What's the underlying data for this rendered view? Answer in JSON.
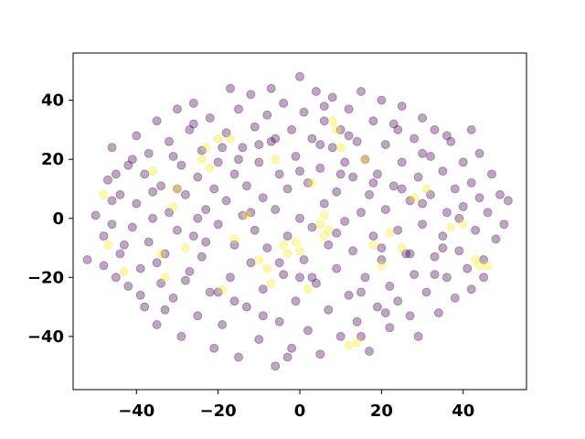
{
  "chart_data": {
    "type": "scatter",
    "title": "",
    "xlabel": "",
    "ylabel": "",
    "xlim": [
      -55.5,
      55.5
    ],
    "ylim": [
      -58,
      56
    ],
    "xticks": [
      -40,
      -20,
      0,
      20,
      40
    ],
    "yticks": [
      -40,
      -20,
      0,
      20,
      40
    ],
    "xtick_labels": [
      "−40",
      "−20",
      "0",
      "20",
      "40"
    ],
    "ytick_labels": [
      "−40",
      "−20",
      "0",
      "20",
      "40"
    ],
    "grid": false,
    "legend": "none",
    "marker_alpha": 0.35,
    "series": [
      {
        "color": "#440154",
        "values": [
          [
            -52,
            -14
          ],
          [
            -50,
            1
          ],
          [
            -48,
            -6
          ],
          [
            -47,
            13
          ],
          [
            -46,
            24
          ],
          [
            -46,
            -2
          ],
          [
            -45,
            -20
          ],
          [
            -44,
            8
          ],
          [
            -44,
            -12
          ],
          [
            -42,
            18
          ],
          [
            -42,
            -23
          ],
          [
            -41,
            -3
          ],
          [
            -40,
            28
          ],
          [
            -40,
            5
          ],
          [
            -39,
            -17
          ],
          [
            -38,
            15
          ],
          [
            -38,
            -30
          ],
          [
            -37,
            22
          ],
          [
            -37,
            -8
          ],
          [
            -36,
            0
          ],
          [
            -35,
            33
          ],
          [
            -35,
            -36
          ],
          [
            -34,
            -22
          ],
          [
            -34,
            11
          ],
          [
            -33,
            -12
          ],
          [
            -32,
            26
          ],
          [
            -32,
            2
          ],
          [
            -31,
            -27
          ],
          [
            -30,
            37
          ],
          [
            -30,
            -4
          ],
          [
            -29,
            18
          ],
          [
            -29,
            -40
          ],
          [
            -28,
            8
          ],
          [
            -27,
            -18
          ],
          [
            -27,
            30
          ],
          [
            -26,
            -6
          ],
          [
            -26,
            39
          ],
          [
            -25,
            14
          ],
          [
            -25,
            -33
          ],
          [
            -24,
            23
          ],
          [
            -24,
            -13
          ],
          [
            -23,
            3
          ],
          [
            -22,
            34
          ],
          [
            -22,
            -25
          ],
          [
            -21,
            10
          ],
          [
            -21,
            -44
          ],
          [
            -20,
            19
          ],
          [
            -20,
            -2
          ],
          [
            -19,
            -36
          ],
          [
            -18,
            29
          ],
          [
            -18,
            6
          ],
          [
            -17,
            -20
          ],
          [
            -17,
            44
          ],
          [
            -16,
            15
          ],
          [
            -16,
            -9
          ],
          [
            -15,
            37
          ],
          [
            -15,
            -47
          ],
          [
            -14,
            1
          ],
          [
            -14,
            24
          ],
          [
            -13,
            -30
          ],
          [
            -13,
            11
          ],
          [
            -12,
            -15
          ],
          [
            -12,
            42
          ],
          [
            -11,
            31
          ],
          [
            -11,
            -4
          ],
          [
            -10,
            19
          ],
          [
            -10,
            -41
          ],
          [
            -9,
            7
          ],
          [
            -9,
            -24
          ],
          [
            -8,
            35
          ],
          [
            -8,
            -10
          ],
          [
            -7,
            26
          ],
          [
            -7,
            44
          ],
          [
            -6,
            -50
          ],
          [
            -6,
            3
          ],
          [
            -5,
            -35
          ],
          [
            -5,
            15
          ],
          [
            -4,
            39
          ],
          [
            -4,
            -19
          ],
          [
            -3,
            10
          ],
          [
            -3,
            -6
          ],
          [
            -2,
            30
          ],
          [
            -2,
            -44
          ],
          [
            -1,
            21
          ],
          [
            -1,
            -28
          ],
          [
            0,
            0
          ],
          [
            0,
            48
          ],
          [
            1,
            -14
          ],
          [
            1,
            36
          ],
          [
            2,
            12
          ],
          [
            2,
            -38
          ],
          [
            3,
            27
          ],
          [
            3,
            -3
          ],
          [
            4,
            43
          ],
          [
            4,
            -22
          ],
          [
            5,
            17
          ],
          [
            5,
            -46
          ],
          [
            6,
            5
          ],
          [
            6,
            33
          ],
          [
            7,
            -31
          ],
          [
            7,
            -9
          ],
          [
            8,
            24
          ],
          [
            8,
            41
          ],
          [
            9,
            -17
          ],
          [
            9,
            9
          ],
          [
            10,
            -40
          ],
          [
            10,
            30
          ],
          [
            11,
            -1
          ],
          [
            11,
            19
          ],
          [
            12,
            -26
          ],
          [
            12,
            37
          ],
          [
            13,
            14
          ],
          [
            13,
            -11
          ],
          [
            14,
            -35
          ],
          [
            14,
            26
          ],
          [
            15,
            2
          ],
          [
            15,
            43
          ],
          [
            16,
            -20
          ],
          [
            16,
            20
          ],
          [
            17,
            -45
          ],
          [
            17,
            8
          ],
          [
            18,
            33
          ],
          [
            18,
            -6
          ],
          [
            19,
            -30
          ],
          [
            19,
            15
          ],
          [
            20,
            40
          ],
          [
            20,
            -14
          ],
          [
            21,
            3
          ],
          [
            21,
            25
          ],
          [
            22,
            -37
          ],
          [
            22,
            -23
          ],
          [
            23,
            11
          ],
          [
            23,
            32
          ],
          [
            24,
            -4
          ],
          [
            24,
            -28
          ],
          [
            25,
            19
          ],
          [
            25,
            38
          ],
          [
            26,
            -12
          ],
          [
            27,
            -33
          ],
          [
            27,
            6
          ],
          [
            28,
            27
          ],
          [
            28,
            -19
          ],
          [
            29,
            14
          ],
          [
            29,
            -40
          ],
          [
            30,
            34
          ],
          [
            30,
            -2
          ],
          [
            31,
            -25
          ],
          [
            32,
            21
          ],
          [
            32,
            8
          ],
          [
            33,
            -13
          ],
          [
            33,
            30
          ],
          [
            34,
            -32
          ],
          [
            35,
            16
          ],
          [
            35,
            -6
          ],
          [
            36,
            2
          ],
          [
            36,
            -20
          ],
          [
            37,
            26
          ],
          [
            38,
            10
          ],
          [
            38,
            -27
          ],
          [
            39,
            -11
          ],
          [
            40,
            19
          ],
          [
            40,
            4
          ],
          [
            41,
            -17
          ],
          [
            42,
            12
          ],
          [
            42,
            -24
          ],
          [
            43,
            -4
          ],
          [
            44,
            22
          ],
          [
            44,
            7
          ],
          [
            45,
            -14
          ],
          [
            46,
            2
          ],
          [
            47,
            15
          ],
          [
            48,
            -7
          ],
          [
            49,
            8
          ],
          [
            50,
            -2
          ],
          [
            51,
            6
          ],
          [
            -48,
            -16
          ],
          [
            -46,
            6
          ],
          [
            -43,
            -9
          ],
          [
            -41,
            20
          ],
          [
            -39,
            -26
          ],
          [
            -36,
            9
          ],
          [
            -33,
            -31
          ],
          [
            -31,
            21
          ],
          [
            -28,
            -21
          ],
          [
            -26,
            32
          ],
          [
            -23,
            -8
          ],
          [
            -19,
            24
          ],
          [
            -16,
            -28
          ],
          [
            -12,
            2
          ],
          [
            -9,
            -33
          ],
          [
            -6,
            27
          ],
          [
            -3,
            -47
          ],
          [
            0,
            16
          ],
          [
            3,
            -20
          ],
          [
            6,
            38
          ],
          [
            9,
            -5
          ],
          [
            12,
            28
          ],
          [
            15,
            -40
          ],
          [
            18,
            12
          ],
          [
            21,
            -32
          ],
          [
            24,
            30
          ],
          [
            27,
            -12
          ],
          [
            30,
            22
          ],
          [
            33,
            -19
          ],
          [
            36,
            28
          ],
          [
            39,
            0
          ],
          [
            42,
            30
          ],
          [
            45,
            -20
          ],
          [
            -30,
            10
          ],
          [
            -20,
            -25
          ],
          [
            -10,
            25
          ],
          [
            0,
            -20
          ],
          [
            10,
            15
          ],
          [
            20,
            -10
          ],
          [
            30,
            5
          ],
          [
            -25,
            0
          ],
          [
            -15,
            20
          ],
          [
            -5,
            -15
          ],
          [
            5,
            25
          ],
          [
            15,
            -25
          ],
          [
            25,
            10
          ],
          [
            35,
            -10
          ],
          [
            -35,
            -15
          ],
          [
            -45,
            15
          ]
        ]
      },
      {
        "color": "#fde725",
        "values": [
          [
            -48,
            8
          ],
          [
            -47,
            -9
          ],
          [
            -43,
            -18
          ],
          [
            -36,
            16
          ],
          [
            -34,
            -12
          ],
          [
            -33,
            -20
          ],
          [
            -31,
            4
          ],
          [
            -30,
            10
          ],
          [
            -28,
            -10
          ],
          [
            -24,
            20
          ],
          [
            -23,
            24
          ],
          [
            -22,
            17
          ],
          [
            -20,
            27
          ],
          [
            -17,
            27
          ],
          [
            -16,
            -7
          ],
          [
            -13,
            1
          ],
          [
            -8,
            -17
          ],
          [
            -7,
            -22
          ],
          [
            -6,
            20
          ],
          [
            -4,
            -9
          ],
          [
            -3,
            -12
          ],
          [
            -1,
            -8
          ],
          [
            0,
            -11
          ],
          [
            2,
            -24
          ],
          [
            3,
            12
          ],
          [
            5,
            -2
          ],
          [
            6,
            1
          ],
          [
            7,
            -4
          ],
          [
            8,
            33
          ],
          [
            9,
            30
          ],
          [
            10,
            24
          ],
          [
            12,
            -43
          ],
          [
            14,
            -42
          ],
          [
            18,
            -9
          ],
          [
            20,
            -16
          ],
          [
            22,
            -5
          ],
          [
            25,
            -10
          ],
          [
            28,
            7
          ],
          [
            31,
            10
          ],
          [
            37,
            -3
          ],
          [
            40,
            -2
          ],
          [
            43,
            -14
          ],
          [
            44,
            -16
          ],
          [
            46,
            -16
          ],
          [
            6,
            -6
          ],
          [
            -19,
            -24
          ],
          [
            -10,
            -14
          ],
          [
            16,
            20
          ]
        ]
      }
    ]
  }
}
